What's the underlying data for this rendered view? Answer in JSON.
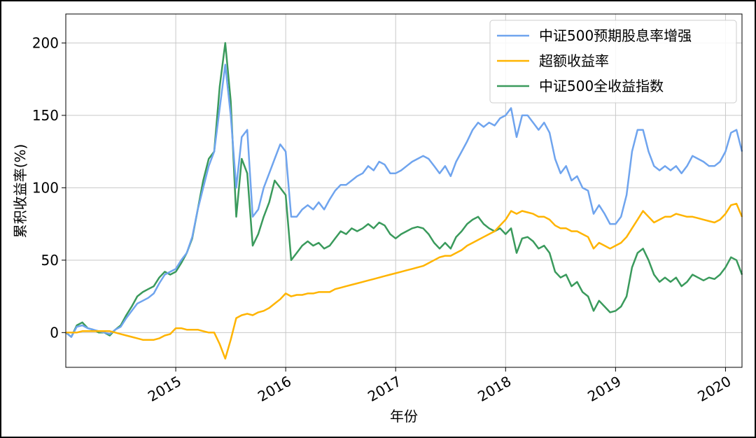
{
  "chart_data": {
    "type": "line",
    "x": [
      2014,
      2014.05,
      2014.1,
      2014.15,
      2014.2,
      2014.25,
      2014.3,
      2014.35,
      2014.4,
      2014.45,
      2014.5,
      2014.55,
      2014.6,
      2014.65,
      2014.7,
      2014.75,
      2014.8,
      2014.85,
      2014.9,
      2014.95,
      2015,
      2015.05,
      2015.1,
      2015.15,
      2015.2,
      2015.25,
      2015.3,
      2015.35,
      2015.4,
      2015.45,
      2015.5,
      2015.55,
      2015.6,
      2015.65,
      2015.7,
      2015.75,
      2015.8,
      2015.85,
      2015.9,
      2015.95,
      2016,
      2016.05,
      2016.1,
      2016.15,
      2016.2,
      2016.25,
      2016.3,
      2016.35,
      2016.4,
      2016.45,
      2016.5,
      2016.55,
      2016.6,
      2016.65,
      2016.7,
      2016.75,
      2016.8,
      2016.85,
      2016.9,
      2016.95,
      2017,
      2017.05,
      2017.1,
      2017.15,
      2017.2,
      2017.25,
      2017.3,
      2017.35,
      2017.4,
      2017.45,
      2017.5,
      2017.55,
      2017.6,
      2017.65,
      2017.7,
      2017.75,
      2017.8,
      2017.85,
      2017.9,
      2017.95,
      2018,
      2018.05,
      2018.1,
      2018.15,
      2018.2,
      2018.25,
      2018.3,
      2018.35,
      2018.4,
      2018.45,
      2018.5,
      2018.55,
      2018.6,
      2018.65,
      2018.7,
      2018.75,
      2018.8,
      2018.85,
      2018.9,
      2018.95,
      2019,
      2019.05,
      2019.1,
      2019.15,
      2019.2,
      2019.25,
      2019.3,
      2019.35,
      2019.4,
      2019.45,
      2019.5,
      2019.55,
      2019.6,
      2019.65,
      2019.7,
      2019.75,
      2019.8,
      2019.85,
      2019.9,
      2019.95,
      2020,
      2020.05,
      2020.1,
      2020.15
    ],
    "series": [
      {
        "name": "中证500预期股息率增强",
        "color": "#6fa4ee",
        "values": [
          0,
          -3,
          4,
          5,
          3,
          2,
          1,
          0,
          -1,
          2,
          4,
          10,
          15,
          20,
          22,
          24,
          27,
          34,
          40,
          42,
          44,
          50,
          55,
          66,
          85,
          100,
          115,
          125,
          155,
          185,
          150,
          100,
          135,
          140,
          80,
          85,
          100,
          110,
          120,
          130,
          125,
          80,
          80,
          85,
          88,
          85,
          90,
          85,
          92,
          98,
          102,
          102,
          105,
          108,
          110,
          115,
          112,
          118,
          116,
          110,
          110,
          112,
          115,
          118,
          120,
          122,
          120,
          115,
          110,
          115,
          108,
          118,
          125,
          132,
          140,
          145,
          142,
          145,
          143,
          148,
          150,
          155,
          135,
          150,
          150,
          145,
          140,
          145,
          138,
          120,
          110,
          115,
          105,
          108,
          100,
          98,
          82,
          88,
          82,
          75,
          75,
          80,
          95,
          125,
          140,
          140,
          125,
          115,
          112,
          115,
          112,
          115,
          110,
          115,
          122,
          120,
          118,
          115,
          115,
          118,
          125,
          138,
          140,
          125
        ]
      },
      {
        "name": "超额收益率",
        "color": "#ffb400",
        "values": [
          0,
          0,
          0,
          1,
          1,
          1,
          1,
          1,
          1,
          0,
          -1,
          -2,
          -3,
          -4,
          -5,
          -5,
          -5,
          -4,
          -2,
          -1,
          3,
          3,
          2,
          2,
          2,
          1,
          0,
          0,
          -8,
          -18,
          -5,
          10,
          12,
          13,
          12,
          14,
          15,
          17,
          20,
          23,
          27,
          25,
          26,
          26,
          27,
          27,
          28,
          28,
          28,
          30,
          31,
          32,
          33,
          34,
          35,
          36,
          37,
          38,
          39,
          40,
          41,
          42,
          43,
          44,
          45,
          46,
          48,
          50,
          52,
          53,
          53,
          55,
          57,
          60,
          62,
          64,
          66,
          68,
          70,
          74,
          78,
          84,
          82,
          84,
          83,
          82,
          80,
          80,
          78,
          74,
          72,
          72,
          70,
          70,
          68,
          66,
          58,
          62,
          60,
          58,
          60,
          62,
          66,
          72,
          78,
          84,
          80,
          76,
          78,
          80,
          80,
          82,
          81,
          80,
          80,
          79,
          78,
          77,
          76,
          78,
          82,
          88,
          89,
          80
        ]
      },
      {
        "name": "中证500全收益指数",
        "color": "#3a9a5c",
        "values": [
          0,
          -3,
          5,
          7,
          3,
          2,
          0,
          0,
          -2,
          2,
          5,
          12,
          18,
          25,
          28,
          30,
          32,
          38,
          42,
          40,
          42,
          48,
          55,
          65,
          85,
          105,
          120,
          125,
          170,
          200,
          160,
          80,
          120,
          110,
          60,
          68,
          80,
          90,
          105,
          100,
          95,
          50,
          55,
          60,
          63,
          60,
          62,
          58,
          60,
          65,
          70,
          68,
          72,
          70,
          72,
          75,
          72,
          76,
          74,
          68,
          65,
          68,
          70,
          72,
          73,
          72,
          68,
          62,
          58,
          62,
          58,
          66,
          70,
          75,
          78,
          80,
          75,
          72,
          70,
          72,
          68,
          72,
          55,
          65,
          66,
          63,
          58,
          60,
          55,
          42,
          38,
          40,
          32,
          35,
          28,
          25,
          15,
          22,
          18,
          14,
          15,
          18,
          25,
          45,
          55,
          58,
          50,
          40,
          35,
          38,
          35,
          38,
          32,
          35,
          40,
          38,
          36,
          38,
          37,
          40,
          45,
          52,
          50,
          40
        ]
      }
    ],
    "xlabel": "年份",
    "ylabel": "累积收益率(%)",
    "xlim": [
      2014,
      2020.15
    ],
    "xticks": [
      2015,
      2016,
      2017,
      2018,
      2019,
      2020
    ],
    "ylim": [
      -24,
      220
    ],
    "yticks": [
      0,
      50,
      100,
      150,
      200
    ],
    "grid": true,
    "legend": "upper right"
  }
}
